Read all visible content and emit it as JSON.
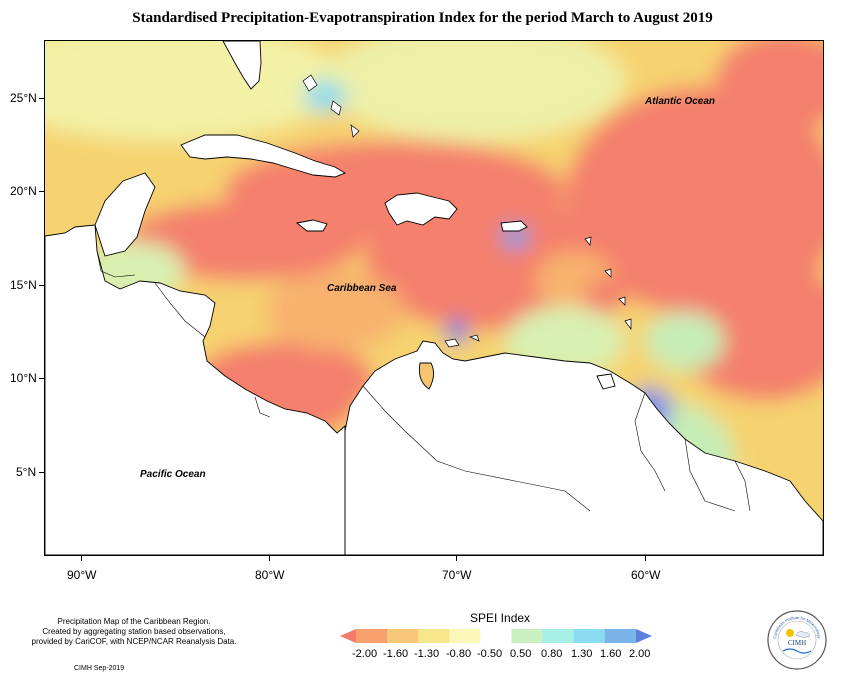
{
  "title": "Standardised Precipitation-Evapotranspiration Index for the period March to August 2019",
  "map": {
    "latitude_labels": [
      "25°N",
      "20°N",
      "15°N",
      "10°N",
      "5°N"
    ],
    "longitude_labels": [
      "90°W",
      "80°W",
      "70°W",
      "60°W"
    ],
    "ocean_labels": {
      "atlantic": "Atlantic Ocean",
      "caribbean": "Caribbean Sea",
      "pacific": "Pacific Ocean"
    },
    "colors": {
      "land": "#ffffff",
      "coast": "#000000"
    }
  },
  "legend": {
    "title": "SPEI Index",
    "tick_labels": [
      "-2.00",
      "-1.60",
      "-1.30",
      "-0.80",
      "-0.50",
      "0.50",
      "0.80",
      "1.30",
      "1.60",
      "2.00"
    ],
    "colors": [
      "#f47a6b",
      "#f8a06c",
      "#f8c878",
      "#f8e68a",
      "#fbf7b8",
      "#ffffff",
      "#c8f0c0",
      "#a6f0e6",
      "#8adcf0",
      "#7cb4ea",
      "#5880dc"
    ]
  },
  "credits": {
    "lines": [
      "Precipitation Map of the Caribbean Region.",
      "Created by aggregating station based observations,",
      "provided by CariCOF, with NCEP/NCAR Reanalysis Data."
    ],
    "date": "CIMH Sep-2019"
  },
  "logo": {
    "name": "CIMH",
    "arc_text": "Caribbean Institute for Meteorology and Hydrology"
  }
}
